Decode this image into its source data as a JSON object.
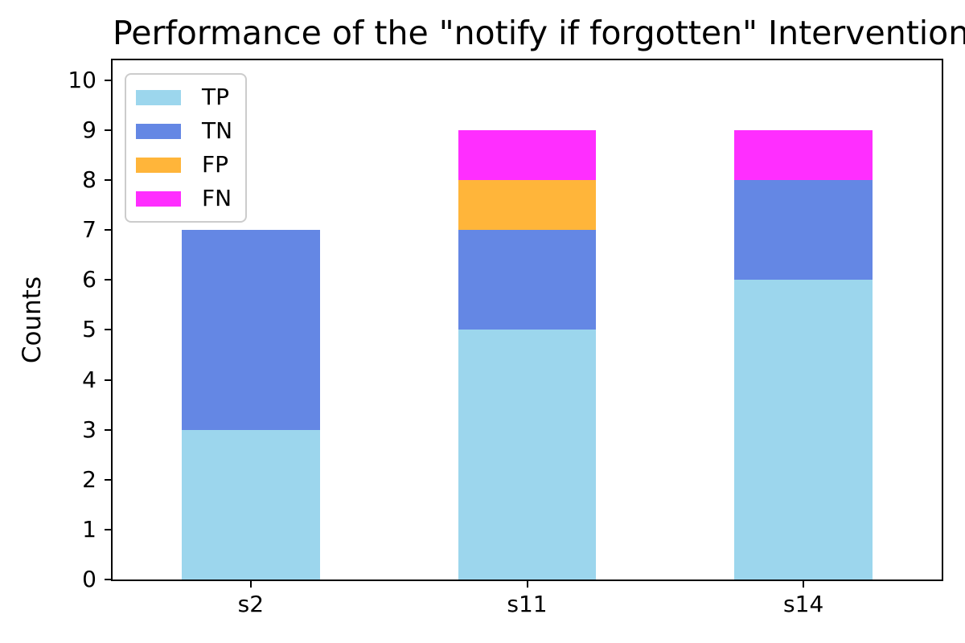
{
  "chart_data": {
    "type": "bar",
    "stacked": true,
    "title": "Performance of the \"notify if forgotten\" Intervention",
    "xlabel": "",
    "ylabel": "Counts",
    "categories": [
      "s2",
      "s11",
      "s14"
    ],
    "series": [
      {
        "name": "TP",
        "color": "#9CD6ED",
        "values": [
          3,
          5,
          6
        ]
      },
      {
        "name": "TN",
        "color": "#6487E4",
        "values": [
          4,
          2,
          2
        ]
      },
      {
        "name": "FP",
        "color": "#FFB53A",
        "values": [
          0,
          1,
          0
        ]
      },
      {
        "name": "FN",
        "color": "#FF2EFF",
        "values": [
          0,
          1,
          1
        ]
      }
    ],
    "ylim": [
      0,
      10.4
    ],
    "yticks": [
      0,
      1,
      2,
      3,
      4,
      5,
      6,
      7,
      8,
      9,
      10
    ],
    "grid": false,
    "legend_position": "upper left",
    "bar_width_fraction": 0.5
  }
}
